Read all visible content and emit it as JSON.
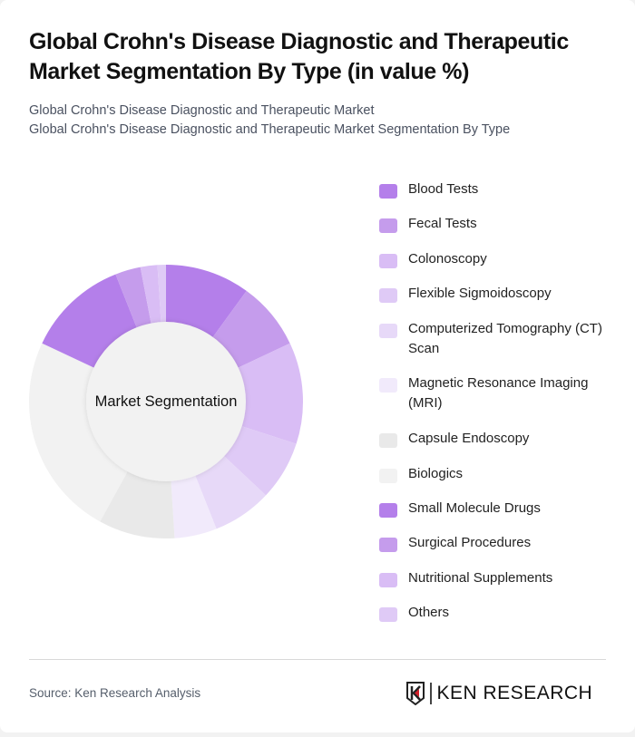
{
  "header": {
    "title": "Global Crohn's Disease Diagnostic and Therapeutic Market Segmentation By Type (in value %)",
    "subtitle_line1": "Global Crohn's Disease Diagnostic and Therapeutic Market",
    "subtitle_line2": "Global Crohn's Disease Diagnostic and Therapeutic Market Segmentation By Type"
  },
  "chart": {
    "center_label": "Market Segmentation"
  },
  "footer": {
    "source": "Source: Ken Research Analysis",
    "logo_text": "KEN RESEARCH"
  },
  "chart_data": {
    "type": "pie",
    "subtype": "donut",
    "title": "Global Crohn's Disease Diagnostic and Therapeutic Market Segmentation By Type (in value %)",
    "center_label": "Market Segmentation",
    "legend_position": "right",
    "categories": [
      "Blood Tests",
      "Fecal Tests",
      "Colonoscopy",
      "Flexible Sigmoidoscopy",
      "Computerized Tomography (CT) Scan",
      "Magnetic Resonance Imaging (MRI)",
      "Capsule Endoscopy",
      "Biologics",
      "Small Molecule Drugs",
      "Surgical Procedures",
      "Nutritional Supplements",
      "Others"
    ],
    "values": [
      10,
      8,
      12,
      7,
      7,
      5,
      9,
      24,
      12,
      3,
      2,
      1
    ],
    "colors": [
      "#b47fea",
      "#c59cec",
      "#d9bdf5",
      "#dfcaf6",
      "#e7d9f8",
      "#f1eafb",
      "#e9e9e9",
      "#f2f2f2",
      "#b47fea",
      "#c59cec",
      "#d9bdf5",
      "#dfcaf6"
    ]
  },
  "legend": {
    "items": [
      {
        "label": "Blood Tests",
        "color": "#b47fea"
      },
      {
        "label": "Fecal Tests",
        "color": "#c59cec"
      },
      {
        "label": "Colonoscopy",
        "color": "#d9bdf5"
      },
      {
        "label": "Flexible Sigmoidoscopy",
        "color": "#dfcaf6"
      },
      {
        "label": "Computerized Tomography (CT) Scan",
        "color": "#e7d9f8"
      },
      {
        "label": "Magnetic Resonance Imaging (MRI)",
        "color": "#f1eafb"
      },
      {
        "label": "Capsule Endoscopy",
        "color": "#e9e9e9"
      },
      {
        "label": "Biologics",
        "color": "#f2f2f2"
      },
      {
        "label": "Small Molecule Drugs",
        "color": "#b47fea"
      },
      {
        "label": "Surgical Procedures",
        "color": "#c59cec"
      },
      {
        "label": "Nutritional Supplements",
        "color": "#d9bdf5"
      },
      {
        "label": "Others",
        "color": "#dfcaf6"
      }
    ]
  }
}
